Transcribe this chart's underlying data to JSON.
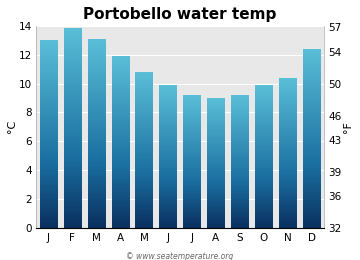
{
  "title": "Portobello water temp",
  "months": [
    "J",
    "F",
    "M",
    "A",
    "M",
    "J",
    "J",
    "A",
    "S",
    "O",
    "N",
    "D"
  ],
  "values_c": [
    13.0,
    13.8,
    13.1,
    11.9,
    10.8,
    9.9,
    9.2,
    9.0,
    9.2,
    9.9,
    10.4,
    12.4
  ],
  "ylabel_left": "°C",
  "ylabel_right": "°F",
  "ylim_c": [
    0,
    14
  ],
  "yticks_c": [
    0,
    2,
    4,
    6,
    8,
    10,
    12,
    14
  ],
  "yticks_f": [
    32,
    36,
    39,
    43,
    46,
    50,
    54,
    57
  ],
  "bar_color_bottom": "#0a3060",
  "bar_color_mid": "#1a6fa0",
  "bar_color_top": "#5bbfd8",
  "background_color": "#ffffff",
  "plot_bg_color": "#e8e8e8",
  "watermark": "© www.seatemperature.org",
  "title_fontsize": 11,
  "axis_fontsize": 8,
  "tick_fontsize": 7.5
}
